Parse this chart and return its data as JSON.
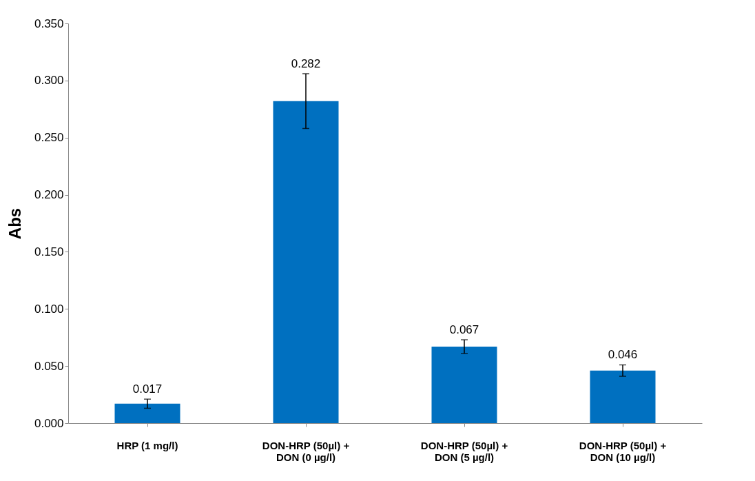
{
  "chart_data": {
    "type": "bar",
    "ylabel": "Abs",
    "categories": [
      "HRP (1 mg/l)",
      "DON-HRP (50µl) +\nDON (0 µg/l)",
      "DON-HRP (50µl) +\nDON (5 µg/l)",
      "DON-HRP (50µl) +\nDON (10 µg/l)"
    ],
    "values": [
      0.017,
      0.282,
      0.067,
      0.046
    ],
    "errors": [
      0.004,
      0.024,
      0.006,
      0.005
    ],
    "color": "#0070c0",
    "ylim": [
      0,
      0.35
    ],
    "yticks": [
      {
        "value": 0,
        "label": "0.000"
      },
      {
        "value": 0.05,
        "label": "0.050"
      },
      {
        "value": 0.1,
        "label": "0.100"
      },
      {
        "value": 0.15,
        "label": "0.150"
      },
      {
        "value": 0.2,
        "label": "0.200"
      },
      {
        "value": 0.25,
        "label": "0.250"
      },
      {
        "value": 0.3,
        "label": "0.300"
      },
      {
        "value": 0.35,
        "label": "0.350"
      }
    ],
    "data_labels": true,
    "grid": false
  }
}
